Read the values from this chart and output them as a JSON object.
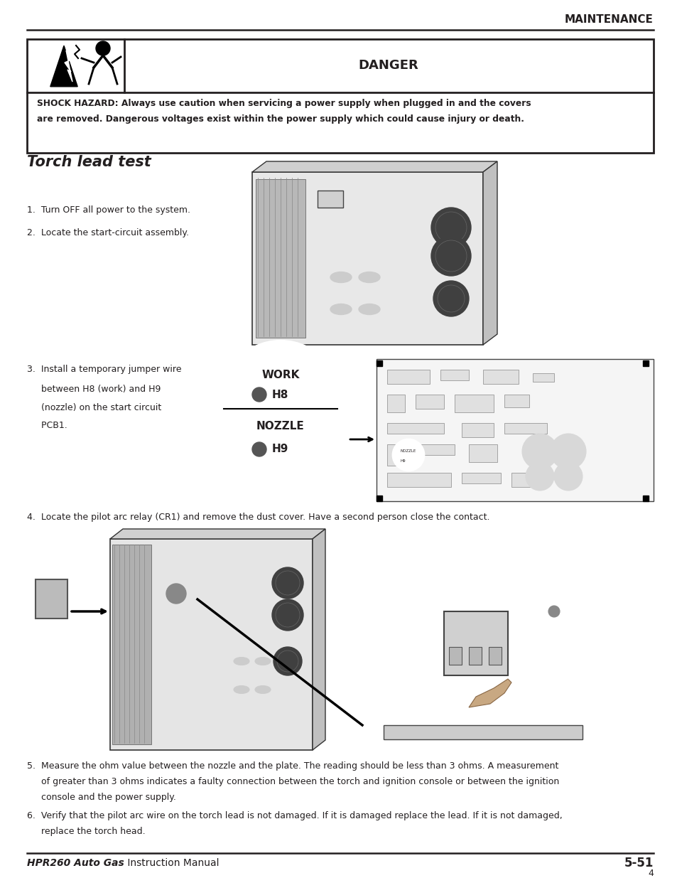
{
  "bg_color": "#ffffff",
  "text_color": "#231f20",
  "header_text": "MAINTENANCE",
  "danger_title": "DANGER",
  "shock_line1": "SHOCK HAZARD: Always use caution when servicing a power supply when plugged in and the covers",
  "shock_line2": "are removed. Dangerous voltages exist within the power supply which could cause injury or death.",
  "section_title": "Torch lead test",
  "step1": "1.  Turn OFF all power to the system.",
  "step2": "2.  Locate the start-circuit assembly.",
  "step3a": "3.  Install a temporary jumper wire",
  "step3b": "     between H8 (work) and H9",
  "step3c": "     (nozzle) on the start circuit",
  "step3d": "     PCB1.",
  "step4": "4.  Locate the pilot arc relay (CR1) and remove the dust cover. Have a second person close the contact.",
  "step5a": "5.  Measure the ohm value between the nozzle and the plate. The reading should be less than 3 ohms. A measurement",
  "step5b": "     of greater than 3 ohms indicates a faulty connection between the torch and ignition console or between the ignition",
  "step5c": "     console and the power supply.",
  "step6a": "6.  Verify that the pilot arc wire on the torch lead is not damaged. If it is damaged replace the lead. If it is not damaged,",
  "step6b": "     replace the torch head.",
  "footer_bold": "HPR260 Auto Gas",
  "footer_normal": " Instruction Manual",
  "footer_right": "5-51",
  "footer_num": "4",
  "work_label": "WORK",
  "h8_label": "H8",
  "nozzle_label": "NOZZLE",
  "h9_label": "H9"
}
